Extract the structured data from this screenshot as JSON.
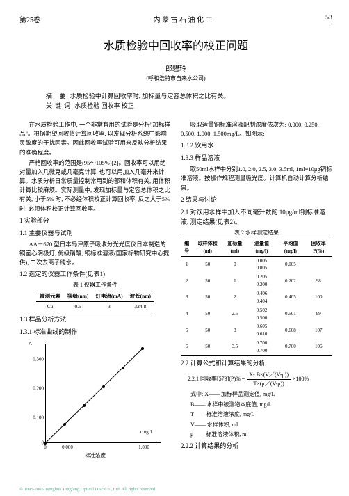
{
  "header": {
    "volume": "第25卷",
    "journal": "内 蒙 古 石 油 化 工",
    "page": "53"
  },
  "title": "水质检验中回收率的校正问题",
  "author": "郎碧玲",
  "affiliation": "(呼和浩特市自来水公司)",
  "abstract": {
    "label": "摘 要",
    "text": "水质检验中计算回收率时, 加标量与定容总体积之比有关。"
  },
  "keywords": {
    "label": "关键词",
    "text": "水质检验  回收率  校正"
  },
  "left": {
    "p1": "在水质检验工作中, 一个非常有用的试验是分析\"加标样品\"。根据期望回收值计算回收率, 以发现分析系统中影响灵敏度的干扰因素。因此回收率试验可用来反映分析结果的准确程度。",
    "p2": "严格回收率的范围是(95～105%)[2]。回收率可以用绝对量加入几微克或几毫克计算, 也可以用加入几毫升来计算。水质分析日常质量控制常用到的部和体积有关, 用体积计算比较麻烦。实际测量中, 发现加标量与定容总体积之比有关, 小于5% 时, 不必经体积校正计算回收率, 反之大于5% 时, 必须体积校正计算回收率。",
    "s1": "1  实验部分",
    "s11": "1.1  主要仪器与试剂",
    "p3": "AA－670 型日本岛津原子吸收分光光度仪日本制造的铜室心阴极灯, 优级硝酸, 铜标准溶液(国家标物研究中心提供), 二次去离子纯水。",
    "s12": "1.2  选定的仪器工作条件(见表1)",
    "t1_cap": "表 1      仪器工作条件",
    "t1": {
      "head": [
        "被测元素",
        "狭缝(nm)",
        "灯电流(mA)",
        "波长(nm)"
      ],
      "row": [
        "Cu",
        "0.5",
        "3",
        "324.8"
      ]
    },
    "s13": "1.3  样品分析方法",
    "s131": "1.3.1  标准曲线的制作",
    "ylabel": "A",
    "yticks": [
      {
        "v": "0.300",
        "y": 28
      },
      {
        "v": "0.200",
        "y": 70
      },
      {
        "v": "0.100",
        "y": 112
      },
      {
        "v": "0",
        "y": 148
      }
    ],
    "xticks": [
      {
        "v": "0",
        "x": 28
      },
      {
        "v": "0.000",
        "x": 60
      },
      {
        "v": "1.000",
        "x": 170
      }
    ],
    "xlabel": "标准浓度",
    "inlabel": "cmg.1",
    "line": [
      [
        28,
        148
      ],
      [
        168,
        12
      ]
    ],
    "pts": [
      [
        28,
        148
      ],
      [
        56,
        121
      ],
      [
        84,
        94
      ],
      [
        112,
        67
      ],
      [
        140,
        40
      ],
      [
        168,
        12
      ]
    ]
  },
  "right": {
    "p1": "吸取适量铜标准溶液配制浓度依次为: 0.000, 0.250, 0.500, 1.000, 1.500mg/L。如图示:",
    "s132": "1.3.2  饮用水",
    "s133": "1.3.3  样品溶液",
    "p2": "取50ml水样中分别1.0, 2.0, 2.5, 3.0, 3.5ml, 1ml=10μg铜标准溶液。按操作规程测量吸光度。计算机自动计算分析结果。",
    "s2": "2  结果与讨论",
    "s21": "2.1  对饮用水样中加入不同毫升数的 10μg/ml铜标准溶液, 测定结果(见表2)。",
    "t2_cap": "表 2      水样测定结果",
    "t2": {
      "head": [
        "编号",
        "取样体积(ml)",
        "加标量(ml)",
        "测量值(mg/l)",
        "平均值(mg/l)",
        "回收率P(%)"
      ],
      "rows": [
        [
          "1",
          "50",
          "0",
          "0.005\n0.005",
          "0.005",
          ""
        ],
        [
          "2",
          "50",
          "1",
          "0.205\n0.200",
          "0.202",
          "98"
        ],
        [
          "3",
          "50",
          "2",
          "0.406\n0.404",
          "0.405",
          "100"
        ],
        [
          "4",
          "50",
          "2.5",
          "0.502\n0.500",
          "0.501",
          "99"
        ],
        [
          "5",
          "50",
          "3",
          "0.605\n0.610",
          "0.608",
          "107"
        ],
        [
          "6",
          "50",
          "3.5",
          "0.700\n0.700",
          "0.700",
          "106"
        ]
      ]
    },
    "s22": "2.2  计算公式和计算结果的分析",
    "s221": "2.2.1  回收率[573](P)% =",
    "frac_num": "X- B×(V／(V-μ))",
    "frac_den": "T×(μ／(V-μ))",
    "times": "×100%",
    "where": [
      "式中: X—— 加标样品测定值, mg/L",
      "B—— 水样中被测物本底值, mg/L",
      "T—— 标准溶液浓度, mg/L",
      "V—— 水样体积, ml",
      "μ—— 标准溶液体积, ml"
    ],
    "s222": "2.2.2  计算结果的分析"
  },
  "footer": "© 1995-2005 Tsinghua Tongfang Optical Disc Co., Ltd.  All rights reserved."
}
